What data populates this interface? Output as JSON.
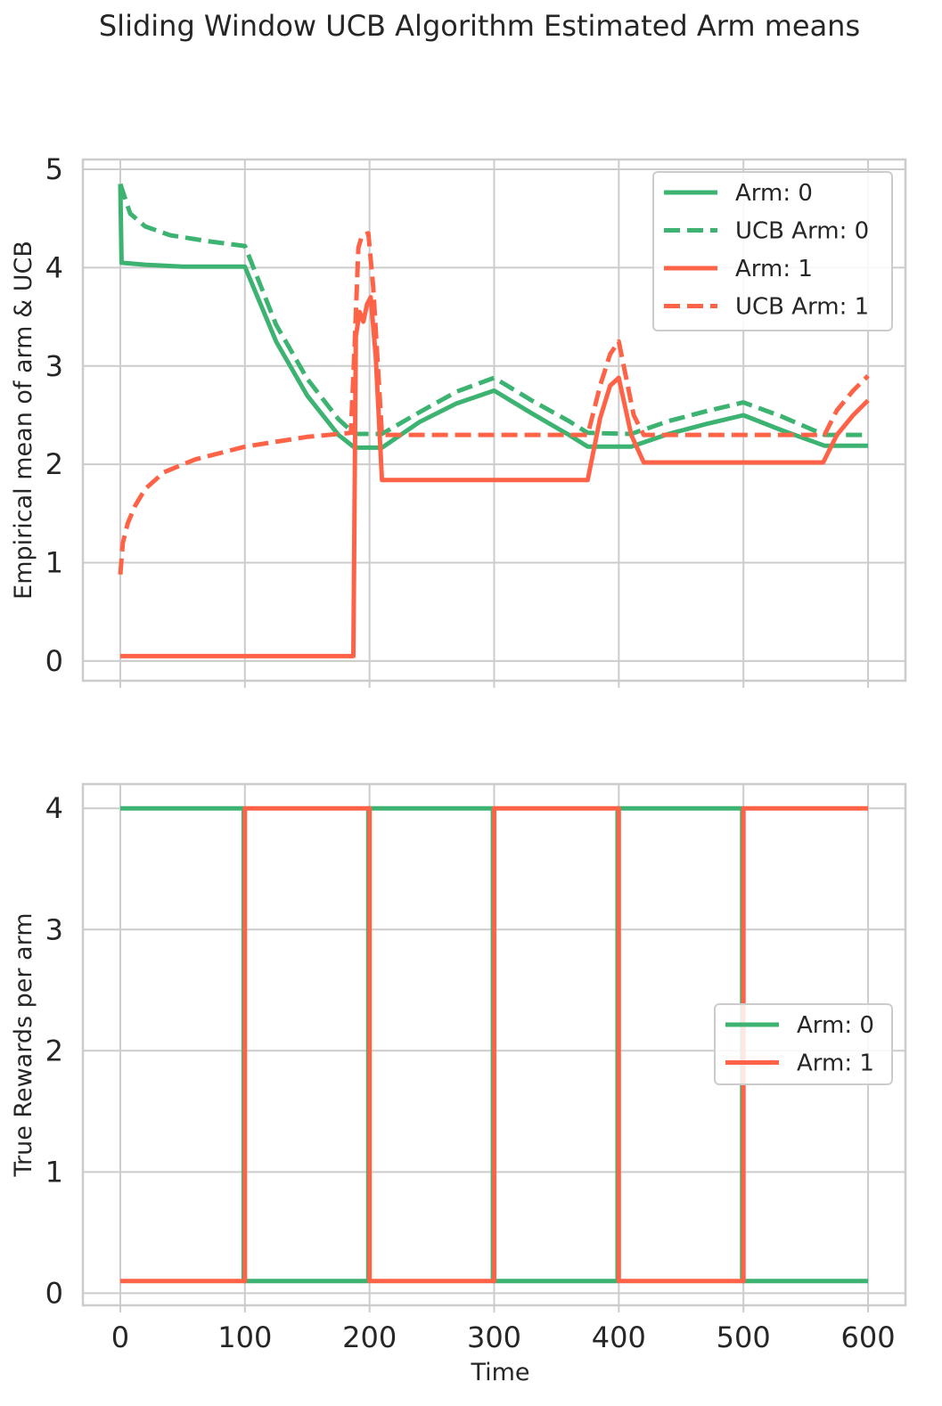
{
  "figure": {
    "title": "Sliding Window UCB Algorithm Estimated Arm means"
  },
  "colors": {
    "arm0": "#3cb371",
    "arm1": "#ff6347",
    "grid": "#cccccc",
    "text": "#262626"
  },
  "chart_data": [
    {
      "type": "line",
      "ylabel": "Empirical mean of arm & UCB",
      "xlabel": "",
      "xlim": [
        -30,
        630
      ],
      "ylim": [
        -0.2,
        5.1
      ],
      "xticks": [
        0,
        100,
        200,
        300,
        400,
        500,
        600
      ],
      "yticks": [
        0,
        1,
        2,
        3,
        4,
        5
      ],
      "show_x_ticklabels": false,
      "grid": true,
      "legend_position": "upper-right",
      "series": [
        {
          "name": "Arm: 0",
          "color": "arm0",
          "style": "solid",
          "points": [
            [
              0,
              4.85
            ],
            [
              1,
              4.05
            ],
            [
              20,
              4.03
            ],
            [
              50,
              4.01
            ],
            [
              100,
              4.01
            ],
            [
              125,
              3.25
            ],
            [
              150,
              2.7
            ],
            [
              175,
              2.3
            ],
            [
              188,
              2.17
            ],
            [
              210,
              2.17
            ],
            [
              240,
              2.43
            ],
            [
              270,
              2.62
            ],
            [
              300,
              2.75
            ],
            [
              330,
              2.52
            ],
            [
              360,
              2.3
            ],
            [
              375,
              2.18
            ],
            [
              410,
              2.18
            ],
            [
              440,
              2.31
            ],
            [
              470,
              2.41
            ],
            [
              500,
              2.5
            ],
            [
              530,
              2.35
            ],
            [
              565,
              2.19
            ],
            [
              600,
              2.19
            ]
          ]
        },
        {
          "name": "UCB Arm: 0",
          "color": "arm0",
          "style": "dashed",
          "points": [
            [
              0,
              4.85
            ],
            [
              8,
              4.55
            ],
            [
              20,
              4.42
            ],
            [
              40,
              4.33
            ],
            [
              70,
              4.27
            ],
            [
              100,
              4.22
            ],
            [
              125,
              3.42
            ],
            [
              150,
              2.87
            ],
            [
              175,
              2.46
            ],
            [
              188,
              2.31
            ],
            [
              210,
              2.31
            ],
            [
              240,
              2.53
            ],
            [
              270,
              2.74
            ],
            [
              300,
              2.88
            ],
            [
              330,
              2.65
            ],
            [
              360,
              2.44
            ],
            [
              375,
              2.32
            ],
            [
              410,
              2.31
            ],
            [
              440,
              2.44
            ],
            [
              470,
              2.54
            ],
            [
              500,
              2.63
            ],
            [
              530,
              2.49
            ],
            [
              565,
              2.3
            ],
            [
              600,
              2.3
            ]
          ]
        },
        {
          "name": "Arm: 1",
          "color": "arm1",
          "style": "solid",
          "points": [
            [
              0,
              0.05
            ],
            [
              187,
              0.05
            ],
            [
              189,
              3.3
            ],
            [
              192,
              3.55
            ],
            [
              195,
              3.45
            ],
            [
              198,
              3.63
            ],
            [
              201,
              3.7
            ],
            [
              205,
              3.1
            ],
            [
              210,
              1.84
            ],
            [
              375,
              1.84
            ],
            [
              385,
              2.47
            ],
            [
              393,
              2.8
            ],
            [
              400,
              2.88
            ],
            [
              410,
              2.3
            ],
            [
              420,
              2.02
            ],
            [
              564,
              2.02
            ],
            [
              575,
              2.3
            ],
            [
              588,
              2.5
            ],
            [
              600,
              2.65
            ]
          ]
        },
        {
          "name": "UCB Arm: 1",
          "color": "arm1",
          "style": "dashed",
          "points": [
            [
              0,
              0.88
            ],
            [
              2,
              1.2
            ],
            [
              6,
              1.4
            ],
            [
              12,
              1.58
            ],
            [
              20,
              1.75
            ],
            [
              35,
              1.92
            ],
            [
              60,
              2.05
            ],
            [
              100,
              2.18
            ],
            [
              150,
              2.28
            ],
            [
              185,
              2.32
            ],
            [
              188,
              3.2
            ],
            [
              191,
              4.2
            ],
            [
              194,
              4.33
            ],
            [
              199,
              4.35
            ],
            [
              203,
              3.8
            ],
            [
              210,
              2.3
            ],
            [
              300,
              2.3
            ],
            [
              375,
              2.3
            ],
            [
              385,
              2.8
            ],
            [
              393,
              3.12
            ],
            [
              400,
              3.25
            ],
            [
              412,
              2.5
            ],
            [
              420,
              2.3
            ],
            [
              565,
              2.3
            ],
            [
              575,
              2.55
            ],
            [
              588,
              2.75
            ],
            [
              600,
              2.9
            ]
          ]
        }
      ]
    },
    {
      "type": "line",
      "ylabel": "True Rewards per arm",
      "xlabel": "Time",
      "xlim": [
        -30,
        630
      ],
      "ylim": [
        -0.1,
        4.2
      ],
      "xticks": [
        0,
        100,
        200,
        300,
        400,
        500,
        600
      ],
      "yticks": [
        0,
        1,
        2,
        3,
        4
      ],
      "show_x_ticklabels": true,
      "grid": true,
      "legend_position": "center-right",
      "series": [
        {
          "name": "Arm: 0",
          "color": "arm0",
          "style": "solid",
          "points": [
            [
              0,
              4
            ],
            [
              99,
              4
            ],
            [
              99,
              0.1
            ],
            [
              199,
              0.1
            ],
            [
              199,
              4
            ],
            [
              299,
              4
            ],
            [
              299,
              0.1
            ],
            [
              399,
              0.1
            ],
            [
              399,
              4
            ],
            [
              499,
              4
            ],
            [
              499,
              0.1
            ],
            [
              600,
              0.1
            ]
          ]
        },
        {
          "name": "Arm: 1",
          "color": "arm1",
          "style": "solid",
          "points": [
            [
              0,
              0.1
            ],
            [
              100,
              0.1
            ],
            [
              100,
              4
            ],
            [
              200,
              4
            ],
            [
              200,
              0.1
            ],
            [
              300,
              0.1
            ],
            [
              300,
              4
            ],
            [
              400,
              4
            ],
            [
              400,
              0.1
            ],
            [
              500,
              0.1
            ],
            [
              500,
              4
            ],
            [
              600,
              4
            ]
          ]
        }
      ]
    }
  ]
}
